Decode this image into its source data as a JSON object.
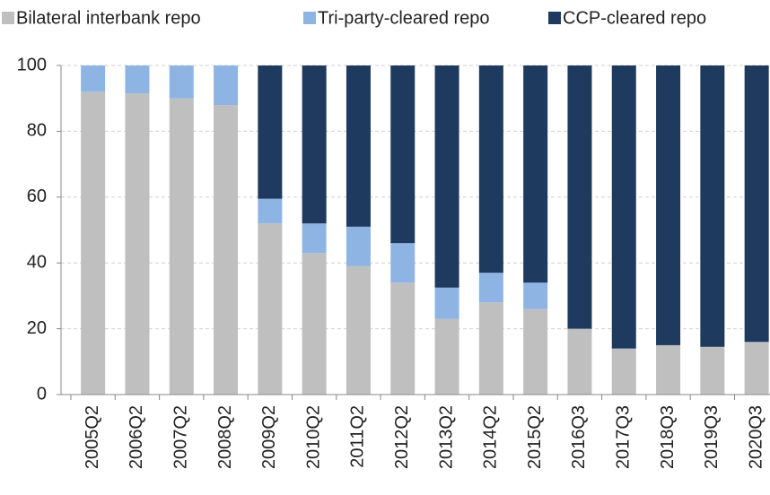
{
  "chart_data": {
    "type": "stacked_bar",
    "categories": [
      "2005Q2",
      "2006Q2",
      "2007Q2",
      "2008Q2",
      "2009Q2",
      "2010Q2",
      "2011Q2",
      "2012Q2",
      "2013Q2",
      "2014Q2",
      "2015Q2",
      "2016Q3",
      "2017Q3",
      "2018Q3",
      "2019Q3",
      "2020Q3"
    ],
    "series": [
      {
        "name": "Bilateral interbank repo",
        "color": "#bfbfbf",
        "values": [
          92,
          91.5,
          90,
          88,
          52,
          43,
          39,
          34,
          23,
          28,
          26,
          20,
          14,
          15,
          14.5,
          16
        ]
      },
      {
        "name": "Tri-party-cleared repo",
        "color": "#8eb4e3",
        "values": [
          8,
          8.5,
          10,
          12,
          7.5,
          9,
          12,
          12,
          9.5,
          9,
          8,
          0,
          0,
          0,
          0,
          0
        ]
      },
      {
        "name": "CCP-cleared repo",
        "color": "#1f3a5f",
        "values": [
          0,
          0,
          0,
          0,
          40.5,
          48,
          49,
          54,
          67.5,
          63,
          66,
          80,
          86,
          85,
          85.5,
          84
        ]
      }
    ],
    "ylim": [
      0,
      100
    ],
    "yticks": [
      0,
      20,
      40,
      60,
      80,
      100
    ],
    "grid": true,
    "legend": "top"
  }
}
